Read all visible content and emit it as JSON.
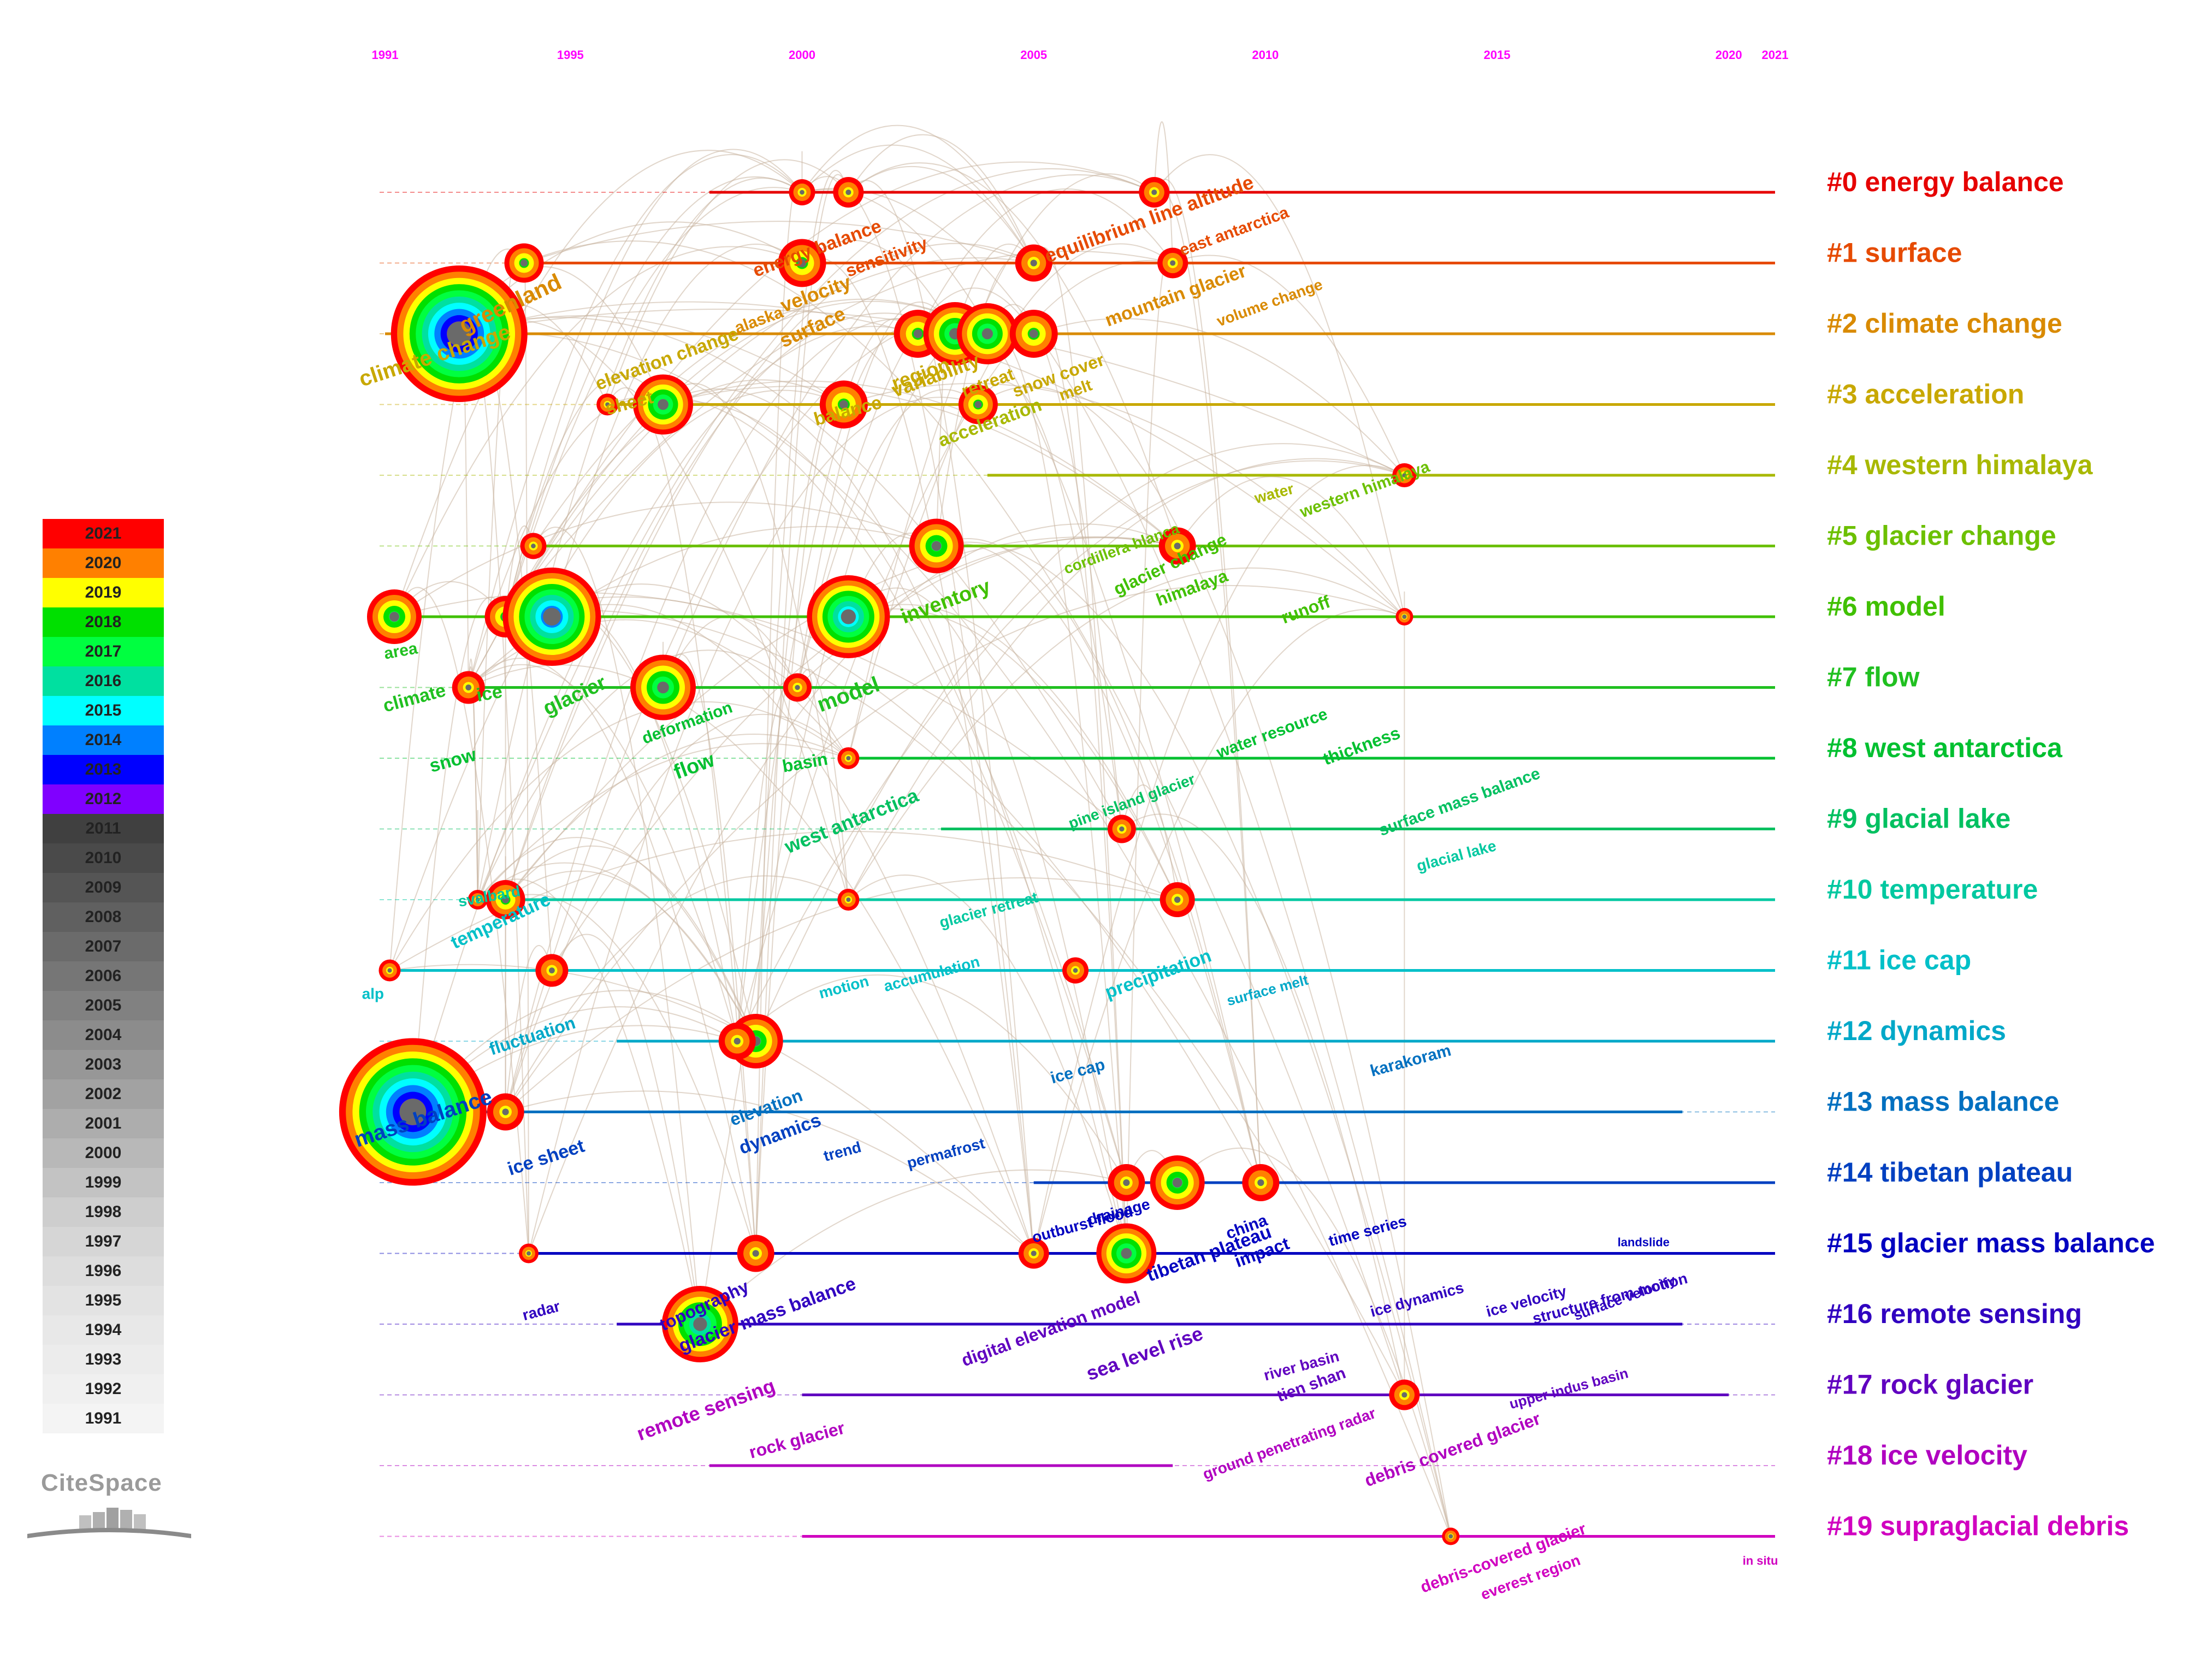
{
  "app": {
    "logo_text": "CiteSpace"
  },
  "years": [
    1991,
    1992,
    1993,
    1994,
    1995,
    1996,
    1997,
    1998,
    1999,
    2000,
    2001,
    2002,
    2003,
    2004,
    2005,
    2006,
    2007,
    2008,
    2009,
    2010,
    2011,
    2012,
    2013,
    2014,
    2015,
    2016,
    2017,
    2018,
    2019,
    2020,
    2021
  ],
  "timeline_ticks": [
    "1991",
    "1995",
    "2000",
    "2005",
    "2010",
    "2015",
    "2020",
    "2021"
  ],
  "legend": [
    {
      "year": "2021",
      "color": "#ff0000"
    },
    {
      "year": "2020",
      "color": "#ff8000"
    },
    {
      "year": "2019",
      "color": "#ffff00"
    },
    {
      "year": "2018",
      "color": "#00e000"
    },
    {
      "year": "2017",
      "color": "#00ff40"
    },
    {
      "year": "2016",
      "color": "#00e0a0"
    },
    {
      "year": "2015",
      "color": "#00ffff"
    },
    {
      "year": "2014",
      "color": "#0080ff"
    },
    {
      "year": "2013",
      "color": "#0000ff"
    },
    {
      "year": "2012",
      "color": "#8000ff"
    },
    {
      "year": "2011",
      "color": "#404040"
    },
    {
      "year": "2010",
      "color": "#4a4a4a"
    },
    {
      "year": "2009",
      "color": "#555555"
    },
    {
      "year": "2008",
      "color": "#606060"
    },
    {
      "year": "2007",
      "color": "#6b6b6b"
    },
    {
      "year": "2006",
      "color": "#767676"
    },
    {
      "year": "2005",
      "color": "#818181"
    },
    {
      "year": "2004",
      "color": "#8c8c8c"
    },
    {
      "year": "2003",
      "color": "#979797"
    },
    {
      "year": "2002",
      "color": "#a2a2a2"
    },
    {
      "year": "2001",
      "color": "#adadad"
    },
    {
      "year": "2000",
      "color": "#b8b8b8"
    },
    {
      "year": "1999",
      "color": "#c3c3c3"
    },
    {
      "year": "1998",
      "color": "#cecece"
    },
    {
      "year": "1997",
      "color": "#d6d6d6"
    },
    {
      "year": "1996",
      "color": "#dddddd"
    },
    {
      "year": "1995",
      "color": "#e3e3e3"
    },
    {
      "year": "1994",
      "color": "#e8e8e8"
    },
    {
      "year": "1993",
      "color": "#ececec"
    },
    {
      "year": "1992",
      "color": "#f0f0f0"
    },
    {
      "year": "1991",
      "color": "#f4f4f4"
    }
  ],
  "clusters": [
    {
      "label": "#0 energy balance",
      "color": "#e60000",
      "start": 1998,
      "end": 2021
    },
    {
      "label": "#1 surface",
      "color": "#e64a00",
      "start": 1994,
      "end": 2021
    },
    {
      "label": "#2 climate change",
      "color": "#d98a00",
      "start": 1991,
      "end": 2021
    },
    {
      "label": "#3 acceleration",
      "color": "#c8a800",
      "start": 1996,
      "end": 2021
    },
    {
      "label": "#4 western himalaya",
      "color": "#a8b800",
      "start": 2004,
      "end": 2021
    },
    {
      "label": "#5 glacier change",
      "color": "#6cc000",
      "start": 1994,
      "end": 2021
    },
    {
      "label": "#6 model",
      "color": "#40c000",
      "start": 1991,
      "end": 2021
    },
    {
      "label": "#7 flow",
      "color": "#20c020",
      "start": 1993,
      "end": 2021
    },
    {
      "label": "#8 west antarctica",
      "color": "#00c030",
      "start": 2001,
      "end": 2021
    },
    {
      "label": "#9 glacial lake",
      "color": "#00c060",
      "start": 2003,
      "end": 2021
    },
    {
      "label": "#10 temperature",
      "color": "#00c8a0",
      "start": 1993,
      "end": 2021
    },
    {
      "label": "#11 ice cap",
      "color": "#00c0c8",
      "start": 1991,
      "end": 2021
    },
    {
      "label": "#12 dynamics",
      "color": "#00a8c8",
      "start": 1996,
      "end": 2021
    },
    {
      "label": "#13 mass balance",
      "color": "#0070c0",
      "start": 1991,
      "end": 2019
    },
    {
      "label": "#14 tibetan plateau",
      "color": "#0040c0",
      "start": 2005,
      "end": 2021
    },
    {
      "label": "#15 glacier mass balance",
      "color": "#0000c0",
      "start": 1994,
      "end": 2021
    },
    {
      "label": "#16 remote sensing",
      "color": "#3000c0",
      "start": 1996,
      "end": 2019
    },
    {
      "label": "#17 rock glacier",
      "color": "#6000c0",
      "start": 2000,
      "end": 2020
    },
    {
      "label": "#18 ice velocity",
      "color": "#b000c0",
      "start": 1998,
      "end": 2008
    },
    {
      "label": "#19 supraglacial debris",
      "color": "#d000c0",
      "start": 2000,
      "end": 2021
    }
  ],
  "keywords": [
    {
      "text": "greenland",
      "lane": 2,
      "year": 1992.7,
      "size": 42,
      "rot": -25
    },
    {
      "text": "climate change",
      "lane": 2.75,
      "year": 1990.5,
      "size": 40,
      "rot": -18
    },
    {
      "text": "mass balance",
      "lane": 13.5,
      "year": 1990.4,
      "size": 40,
      "rot": -18
    },
    {
      "text": "ice sheet",
      "lane": 13.9,
      "year": 1993.7,
      "size": 34,
      "rot": -18
    },
    {
      "text": "fluctuation",
      "lane": 12.2,
      "year": 1993.3,
      "size": 32,
      "rot": -18
    },
    {
      "text": "temperature",
      "lane": 10.7,
      "year": 1992.5,
      "size": 34,
      "rot": -25
    },
    {
      "text": "svalbard",
      "lane": 10.1,
      "year": 1992.6,
      "size": 28,
      "rot": -10
    },
    {
      "text": "alp",
      "lane": 11.4,
      "year": 1990.5,
      "size": 28,
      "rot": 0
    },
    {
      "text": "area",
      "lane": 6.6,
      "year": 1991,
      "size": 30,
      "rot": -10
    },
    {
      "text": "climate",
      "lane": 7.35,
      "year": 1991,
      "size": 34,
      "rot": -15
    },
    {
      "text": "snow",
      "lane": 8.2,
      "year": 1992,
      "size": 34,
      "rot": -15
    },
    {
      "text": "ice",
      "lane": 7.2,
      "year": 1993,
      "size": 34,
      "rot": -10
    },
    {
      "text": "glacier",
      "lane": 7.4,
      "year": 1994.5,
      "size": 38,
      "rot": -25
    },
    {
      "text": "sheet",
      "lane": 3.15,
      "year": 1995.8,
      "size": 34,
      "rot": -15
    },
    {
      "text": "elevation change",
      "lane": 2.8,
      "year": 1995.6,
      "size": 34,
      "rot": -20
    },
    {
      "text": "deformation",
      "lane": 7.8,
      "year": 1996.6,
      "size": 30,
      "rot": -20
    },
    {
      "text": "flow",
      "lane": 8.3,
      "year": 1997.3,
      "size": 38,
      "rot": -20
    },
    {
      "text": "model",
      "lane": 7.35,
      "year": 2000.4,
      "size": 40,
      "rot": -20
    },
    {
      "text": "basin",
      "lane": 8.2,
      "year": 1999.6,
      "size": 32,
      "rot": -10
    },
    {
      "text": "west antarctica",
      "lane": 9.35,
      "year": 1999.7,
      "size": 36,
      "rot": -22
    },
    {
      "text": "inventory",
      "lane": 6.1,
      "year": 2002.2,
      "size": 38,
      "rot": -20
    },
    {
      "text": "balance",
      "lane": 3.3,
      "year": 2000.3,
      "size": 34,
      "rot": -15
    },
    {
      "text": "surface",
      "lane": 2.2,
      "year": 1999.6,
      "size": 36,
      "rot": -25
    },
    {
      "text": "velocity",
      "lane": 1.7,
      "year": 1999.6,
      "size": 36,
      "rot": -20
    },
    {
      "text": "energy balance",
      "lane": 1.2,
      "year": 1999,
      "size": 34,
      "rot": -20
    },
    {
      "text": "sensitivity",
      "lane": 1.2,
      "year": 2001,
      "size": 32,
      "rot": -20
    },
    {
      "text": "alaska",
      "lane": 2.0,
      "year": 1998.6,
      "size": 30,
      "rot": -20
    },
    {
      "text": "region",
      "lane": 2.8,
      "year": 2002,
      "size": 36,
      "rot": -20
    },
    {
      "text": "variability",
      "lane": 2.9,
      "year": 2002,
      "size": 36,
      "rot": -20
    },
    {
      "text": "retreat",
      "lane": 2.9,
      "year": 2003.5,
      "size": 32,
      "rot": -20
    },
    {
      "text": "snow cover",
      "lane": 2.9,
      "year": 2004.6,
      "size": 32,
      "rot": -20
    },
    {
      "text": "acceleration",
      "lane": 3.6,
      "year": 2003,
      "size": 34,
      "rot": -20
    },
    {
      "text": "equilibrium line altitude",
      "lane": 1.0,
      "year": 2005.3,
      "size": 36,
      "rot": -20
    },
    {
      "text": "mountain glacier",
      "lane": 1.9,
      "year": 2006.6,
      "size": 34,
      "rot": -20
    },
    {
      "text": "melt",
      "lane": 2.95,
      "year": 2005.6,
      "size": 30,
      "rot": -20
    },
    {
      "text": "east antarctica",
      "lane": 0.9,
      "year": 2008.2,
      "size": 30,
      "rot": -20
    },
    {
      "text": "volume change",
      "lane": 1.9,
      "year": 2009,
      "size": 28,
      "rot": -20
    },
    {
      "text": "glacier change",
      "lane": 5.7,
      "year": 2006.8,
      "size": 32,
      "rot": -25
    },
    {
      "text": "himalaya",
      "lane": 5.85,
      "year": 2007.7,
      "size": 32,
      "rot": -20
    },
    {
      "text": "cordillera blanca",
      "lane": 5.4,
      "year": 2005.7,
      "size": 28,
      "rot": -20
    },
    {
      "text": "runoff",
      "lane": 6.1,
      "year": 2010.4,
      "size": 32,
      "rot": -20
    },
    {
      "text": "western himalaya",
      "lane": 4.6,
      "year": 2010.8,
      "size": 30,
      "rot": -20
    },
    {
      "text": "water",
      "lane": 4.4,
      "year": 2009.8,
      "size": 28,
      "rot": -15
    },
    {
      "text": "thickness",
      "lane": 8.1,
      "year": 2011.3,
      "size": 32,
      "rot": -20
    },
    {
      "text": "water resource",
      "lane": 8.0,
      "year": 2009,
      "size": 30,
      "rot": -20
    },
    {
      "text": "surface mass balance",
      "lane": 9.1,
      "year": 2012.5,
      "size": 30,
      "rot": -20
    },
    {
      "text": "glacial lake",
      "lane": 9.6,
      "year": 2013.3,
      "size": 28,
      "rot": -15
    },
    {
      "text": "pine island glacier",
      "lane": 9.0,
      "year": 2005.8,
      "size": 28,
      "rot": -20
    },
    {
      "text": "precipitation",
      "lane": 11.4,
      "year": 2006.6,
      "size": 34,
      "rot": -20
    },
    {
      "text": "accumulation",
      "lane": 11.3,
      "year": 2001.8,
      "size": 28,
      "rot": -15
    },
    {
      "text": "motion",
      "lane": 11.4,
      "year": 2000.4,
      "size": 28,
      "rot": -15
    },
    {
      "text": "glacier retreat",
      "lane": 10.4,
      "year": 2003,
      "size": 28,
      "rot": -15
    },
    {
      "text": "surface melt",
      "lane": 11.5,
      "year": 2009.2,
      "size": 26,
      "rot": -15
    },
    {
      "text": "ice cap",
      "lane": 12.6,
      "year": 2005.4,
      "size": 30,
      "rot": -15
    },
    {
      "text": "elevation",
      "lane": 13.2,
      "year": 1998.5,
      "size": 32,
      "rot": -20
    },
    {
      "text": "dynamics",
      "lane": 13.6,
      "year": 1998.7,
      "size": 34,
      "rot": -20
    },
    {
      "text": "trend",
      "lane": 13.7,
      "year": 2000.5,
      "size": 28,
      "rot": -15
    },
    {
      "text": "permafrost",
      "lane": 13.8,
      "year": 2002.3,
      "size": 28,
      "rot": -15
    },
    {
      "text": "karakoram",
      "lane": 12.5,
      "year": 2012.3,
      "size": 30,
      "rot": -15
    },
    {
      "text": "topography",
      "lane": 16.1,
      "year": 1997,
      "size": 32,
      "rot": -25
    },
    {
      "text": "glacier mass balance",
      "lane": 16.4,
      "year": 1997.4,
      "size": 34,
      "rot": -20
    },
    {
      "text": "remote sensing",
      "lane": 17.65,
      "year": 1996.5,
      "size": 36,
      "rot": -20
    },
    {
      "text": "digital elevation model",
      "lane": 16.6,
      "year": 2003.5,
      "size": 32,
      "rot": -20
    },
    {
      "text": "sea level rise",
      "lane": 16.8,
      "year": 2006.2,
      "size": 36,
      "rot": -20
    },
    {
      "text": "tibetan plateau",
      "lane": 15.4,
      "year": 2007.5,
      "size": 34,
      "rot": -20
    },
    {
      "text": "impact",
      "lane": 15.2,
      "year": 2009.4,
      "size": 32,
      "rot": -20
    },
    {
      "text": "china",
      "lane": 14.8,
      "year": 2009.2,
      "size": 30,
      "rot": -20
    },
    {
      "text": "drainage",
      "lane": 14.6,
      "year": 2006.2,
      "size": 28,
      "rot": -15
    },
    {
      "text": "outburst flood",
      "lane": 14.85,
      "year": 2005,
      "size": 28,
      "rot": -15
    },
    {
      "text": "time series",
      "lane": 14.9,
      "year": 2011.4,
      "size": 28,
      "rot": -15
    },
    {
      "text": "tien shan",
      "lane": 17.1,
      "year": 2010.3,
      "size": 30,
      "rot": -20
    },
    {
      "text": "river basin",
      "lane": 16.8,
      "year": 2010,
      "size": 28,
      "rot": -15
    },
    {
      "text": "ice dynamics",
      "lane": 15.9,
      "year": 2012.3,
      "size": 28,
      "rot": -15
    },
    {
      "text": "ice velocity",
      "lane": 15.9,
      "year": 2014.8,
      "size": 28,
      "rot": -15
    },
    {
      "text": "structure from motion",
      "lane": 16.0,
      "year": 2015.8,
      "size": 28,
      "rot": -15
    },
    {
      "text": "rock glacier",
      "lane": 17.9,
      "year": 1998.9,
      "size": 32,
      "rot": -15
    },
    {
      "text": "radar",
      "lane": 15.95,
      "year": 1994,
      "size": 28,
      "rot": -15
    },
    {
      "text": "ground penetrating radar",
      "lane": 18.2,
      "year": 2008.7,
      "size": 28,
      "rot": -20
    },
    {
      "text": "debris covered glacier",
      "lane": 18.3,
      "year": 2012.2,
      "size": 32,
      "rot": -20
    },
    {
      "text": "debris-covered glacier",
      "lane": 19.8,
      "year": 2013.4,
      "size": 30,
      "rot": -20
    },
    {
      "text": "everest region",
      "lane": 19.9,
      "year": 2014.7,
      "size": 28,
      "rot": -20
    },
    {
      "text": "upper indus basin",
      "lane": 17.2,
      "year": 2015.3,
      "size": 26,
      "rot": -15
    },
    {
      "text": "surface velocity",
      "lane": 15.95,
      "year": 2016.7,
      "size": 26,
      "rot": -20
    },
    {
      "text": "in situ",
      "lane": 19.4,
      "year": 2020.3,
      "size": 22,
      "rot": 0
    },
    {
      "text": "landslide",
      "lane": 14.9,
      "year": 2017.6,
      "size": 22,
      "rot": 0
    }
  ],
  "nodes": [
    {
      "lane": 2,
      "year": 1992.6,
      "r": 125
    },
    {
      "lane": 13,
      "year": 1991.6,
      "r": 135
    },
    {
      "lane": 1,
      "year": 1994,
      "r": 36
    },
    {
      "lane": 6,
      "year": 1991.2,
      "r": 50
    },
    {
      "lane": 6,
      "year": 1993.6,
      "r": 38
    },
    {
      "lane": 6,
      "year": 1994.6,
      "r": 90
    },
    {
      "lane": 7,
      "year": 1992.8,
      "r": 30
    },
    {
      "lane": 7,
      "year": 1997,
      "r": 60
    },
    {
      "lane": 3,
      "year": 1997,
      "r": 55
    },
    {
      "lane": 3,
      "year": 1995.8,
      "r": 20
    },
    {
      "lane": 5,
      "year": 1994.2,
      "r": 24
    },
    {
      "lane": 10,
      "year": 1993.6,
      "r": 36
    },
    {
      "lane": 10,
      "year": 1993,
      "r": 18
    },
    {
      "lane": 11,
      "year": 1991.1,
      "r": 20
    },
    {
      "lane": 11,
      "year": 1994.6,
      "r": 30
    },
    {
      "lane": 12,
      "year": 1999,
      "r": 50
    },
    {
      "lane": 12,
      "year": 1998.6,
      "r": 34
    },
    {
      "lane": 13,
      "year": 1993.6,
      "r": 34
    },
    {
      "lane": 15,
      "year": 1994.1,
      "r": 18
    },
    {
      "lane": 15,
      "year": 1999,
      "r": 34
    },
    {
      "lane": 16,
      "year": 1997.8,
      "r": 70
    },
    {
      "lane": 0,
      "year": 2001,
      "r": 28
    },
    {
      "lane": 0,
      "year": 2000,
      "r": 24
    },
    {
      "lane": 0,
      "year": 2007.6,
      "r": 28
    },
    {
      "lane": 1,
      "year": 2000,
      "r": 44
    },
    {
      "lane": 1,
      "year": 2005,
      "r": 34
    },
    {
      "lane": 1,
      "year": 2008,
      "r": 28
    },
    {
      "lane": 2,
      "year": 2002.5,
      "r": 44
    },
    {
      "lane": 2,
      "year": 2003.3,
      "r": 58
    },
    {
      "lane": 2,
      "year": 2004,
      "r": 56
    },
    {
      "lane": 2,
      "year": 2005,
      "r": 44
    },
    {
      "lane": 3,
      "year": 2000.9,
      "r": 44
    },
    {
      "lane": 3,
      "year": 2003.8,
      "r": 36
    },
    {
      "lane": 5,
      "year": 2002.9,
      "r": 50
    },
    {
      "lane": 5,
      "year": 2008.1,
      "r": 34
    },
    {
      "lane": 6,
      "year": 2001,
      "r": 76
    },
    {
      "lane": 7,
      "year": 1999.9,
      "r": 26
    },
    {
      "lane": 8,
      "year": 2001,
      "r": 20
    },
    {
      "lane": 9,
      "year": 2006.9,
      "r": 26
    },
    {
      "lane": 10,
      "year": 2008.1,
      "r": 32
    },
    {
      "lane": 10,
      "year": 2001,
      "r": 20
    },
    {
      "lane": 11,
      "year": 2005.9,
      "r": 24
    },
    {
      "lane": 14,
      "year": 2007,
      "r": 34
    },
    {
      "lane": 14,
      "year": 2008.1,
      "r": 50
    },
    {
      "lane": 14,
      "year": 2009.9,
      "r": 34
    },
    {
      "lane": 15,
      "year": 2005,
      "r": 28
    },
    {
      "lane": 15,
      "year": 2007,
      "r": 55
    },
    {
      "lane": 17,
      "year": 2013,
      "r": 28
    },
    {
      "lane": 4,
      "year": 2013,
      "r": 22
    },
    {
      "lane": 6,
      "year": 2013,
      "r": 16
    },
    {
      "lane": 19,
      "year": 2014,
      "r": 16
    }
  ]
}
